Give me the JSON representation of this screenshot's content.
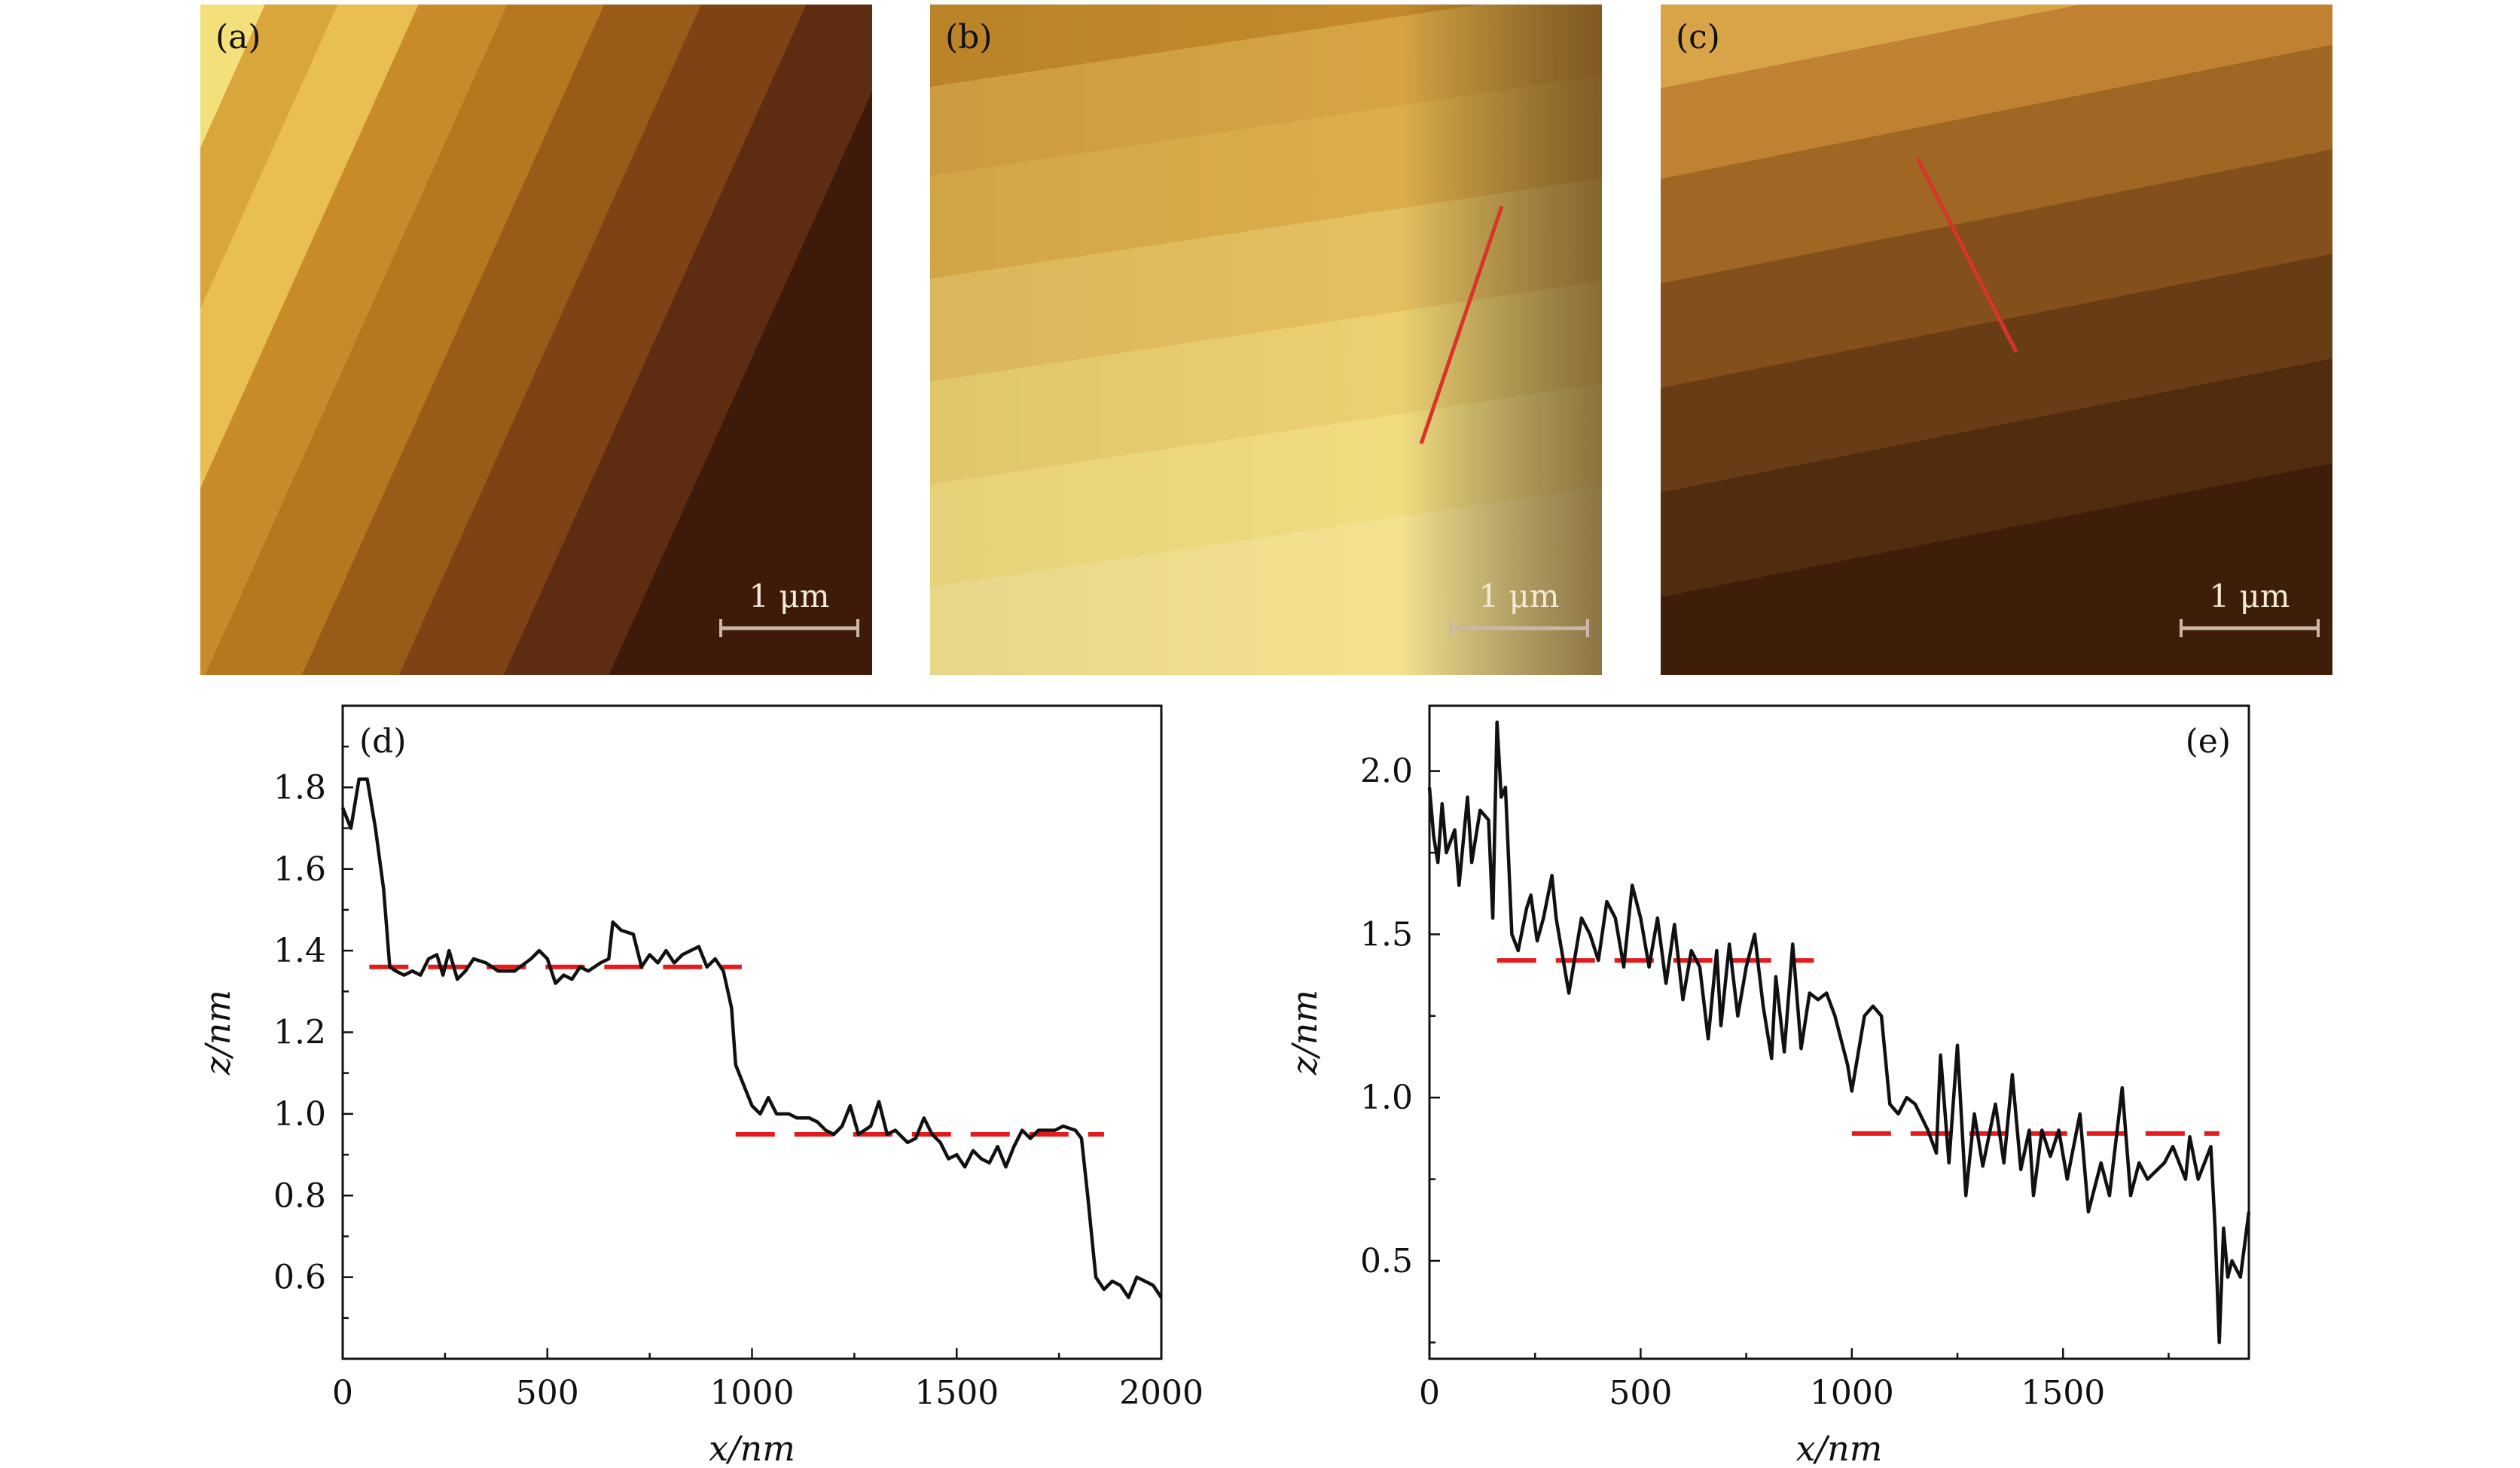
{
  "images": [
    {
      "label": "(a)",
      "scale_bar": "1 μm",
      "has_profile_line": false
    },
    {
      "label": "(b)",
      "scale_bar": "1 μm",
      "has_profile_line": true
    },
    {
      "label": "(c)",
      "scale_bar": "1 μm",
      "has_profile_line": true
    }
  ],
  "colors": {
    "profile": "#111111",
    "reference": "#e41a1c",
    "profile_line": "#d9342b"
  },
  "chart_data": [
    {
      "type": "line",
      "panel_label": "(d)",
      "xlabel": "x/nm",
      "ylabel": "z/nm",
      "xlim": [
        0,
        2000
      ],
      "ylim": [
        0.4,
        2.0
      ],
      "xticks": [
        0,
        500,
        1000,
        1500,
        2000
      ],
      "xtick_labels": [
        "0",
        "500",
        "1000",
        "1500",
        "2000"
      ],
      "yticks": [
        0.6,
        0.8,
        1.0,
        1.2,
        1.4,
        1.6,
        1.8
      ],
      "ytick_labels": [
        "0.6",
        "0.8",
        "1.0",
        "1.2",
        "1.4",
        "1.6",
        "1.8"
      ],
      "grid": false,
      "series": [
        {
          "x": [
            0,
            20,
            40,
            60,
            80,
            100,
            115,
            130,
            150,
            170,
            190,
            210,
            230,
            245,
            260,
            280,
            300,
            320,
            350,
            380,
            420,
            460,
            480,
            500,
            520,
            540,
            560,
            580,
            600,
            630,
            650,
            660,
            680,
            710,
            730,
            750,
            770,
            790,
            810,
            830,
            850,
            870,
            890,
            910,
            930,
            950,
            960,
            980,
            1000,
            1020,
            1040,
            1060,
            1090,
            1110,
            1140,
            1160,
            1180,
            1200,
            1220,
            1240,
            1260,
            1290,
            1310,
            1330,
            1350,
            1380,
            1400,
            1420,
            1440,
            1460,
            1480,
            1500,
            1520,
            1540,
            1560,
            1580,
            1600,
            1620,
            1640,
            1660,
            1680,
            1700,
            1740,
            1760,
            1790,
            1805,
            1820,
            1840,
            1860,
            1880,
            1900,
            1920,
            1940,
            1960,
            1980,
            2000
          ],
          "y": [
            1.75,
            1.7,
            1.82,
            1.82,
            1.7,
            1.55,
            1.36,
            1.35,
            1.34,
            1.35,
            1.34,
            1.38,
            1.39,
            1.34,
            1.4,
            1.33,
            1.35,
            1.38,
            1.37,
            1.35,
            1.35,
            1.38,
            1.4,
            1.38,
            1.32,
            1.34,
            1.33,
            1.36,
            1.35,
            1.37,
            1.38,
            1.47,
            1.45,
            1.44,
            1.36,
            1.39,
            1.37,
            1.4,
            1.37,
            1.39,
            1.4,
            1.41,
            1.36,
            1.38,
            1.35,
            1.26,
            1.12,
            1.07,
            1.02,
            1.0,
            1.04,
            1.0,
            1.0,
            0.99,
            0.99,
            0.98,
            0.96,
            0.95,
            0.97,
            1.02,
            0.95,
            0.97,
            1.03,
            0.95,
            0.96,
            0.93,
            0.94,
            0.99,
            0.95,
            0.93,
            0.89,
            0.9,
            0.87,
            0.91,
            0.89,
            0.88,
            0.92,
            0.87,
            0.92,
            0.96,
            0.94,
            0.96,
            0.96,
            0.97,
            0.96,
            0.94,
            0.8,
            0.6,
            0.57,
            0.59,
            0.58,
            0.55,
            0.6,
            0.59,
            0.58,
            0.55
          ]
        }
      ],
      "reference_lines": [
        {
          "y": 1.36,
          "x_range": [
            65,
            975
          ],
          "style": "dashed"
        },
        {
          "y": 0.95,
          "x_range": [
            960,
            1860
          ],
          "style": "dashed"
        }
      ]
    },
    {
      "type": "line",
      "panel_label": "(e)",
      "xlabel": "x/nm",
      "ylabel": "z/nm",
      "xlim": [
        0,
        1940
      ],
      "ylim": [
        0.2,
        2.2
      ],
      "xticks": [
        0,
        500,
        1000,
        1500
      ],
      "xtick_labels": [
        "0",
        "500",
        "1000",
        "1500"
      ],
      "yticks": [
        0.5,
        1.0,
        1.5,
        2.0
      ],
      "ytick_labels": [
        "0.5",
        "1.0",
        "1.5",
        "2.0"
      ],
      "grid": false,
      "series": [
        {
          "x": [
            0,
            10,
            20,
            30,
            40,
            60,
            70,
            90,
            100,
            120,
            140,
            150,
            160,
            170,
            180,
            195,
            210,
            230,
            240,
            255,
            270,
            290,
            300,
            330,
            360,
            380,
            400,
            420,
            440,
            460,
            480,
            500,
            520,
            540,
            560,
            580,
            600,
            620,
            640,
            660,
            680,
            690,
            710,
            730,
            750,
            770,
            790,
            810,
            820,
            840,
            860,
            880,
            900,
            920,
            940,
            960,
            990,
            1000,
            1030,
            1050,
            1070,
            1090,
            1110,
            1130,
            1150,
            1180,
            1200,
            1210,
            1230,
            1250,
            1270,
            1290,
            1310,
            1340,
            1360,
            1380,
            1400,
            1420,
            1430,
            1450,
            1470,
            1490,
            1510,
            1540,
            1560,
            1590,
            1610,
            1640,
            1660,
            1680,
            1700,
            1740,
            1760,
            1790,
            1800,
            1820,
            1850,
            1860,
            1870,
            1880,
            1890,
            1900,
            1920,
            1940
          ],
          "y": [
            1.95,
            1.8,
            1.72,
            1.9,
            1.75,
            1.82,
            1.65,
            1.92,
            1.72,
            1.88,
            1.85,
            1.55,
            2.15,
            1.92,
            1.95,
            1.5,
            1.45,
            1.58,
            1.62,
            1.48,
            1.55,
            1.68,
            1.55,
            1.32,
            1.55,
            1.5,
            1.42,
            1.6,
            1.55,
            1.4,
            1.65,
            1.55,
            1.4,
            1.55,
            1.35,
            1.53,
            1.3,
            1.45,
            1.4,
            1.18,
            1.45,
            1.22,
            1.47,
            1.25,
            1.4,
            1.5,
            1.28,
            1.12,
            1.37,
            1.14,
            1.47,
            1.15,
            1.32,
            1.3,
            1.32,
            1.25,
            1.1,
            1.02,
            1.25,
            1.28,
            1.25,
            0.98,
            0.95,
            1.0,
            0.98,
            0.9,
            0.83,
            1.13,
            0.8,
            1.16,
            0.7,
            0.95,
            0.79,
            0.98,
            0.8,
            1.07,
            0.78,
            0.9,
            0.7,
            0.9,
            0.82,
            0.9,
            0.75,
            0.95,
            0.65,
            0.8,
            0.7,
            1.03,
            0.7,
            0.8,
            0.75,
            0.8,
            0.85,
            0.75,
            0.88,
            0.75,
            0.85,
            0.6,
            0.25,
            0.6,
            0.45,
            0.5,
            0.45,
            0.65
          ]
        }
      ],
      "reference_lines": [
        {
          "y": 1.42,
          "x_range": [
            160,
            910
          ],
          "style": "dashed"
        },
        {
          "y": 0.89,
          "x_range": [
            1000,
            1870
          ],
          "style": "dashed"
        }
      ]
    }
  ]
}
